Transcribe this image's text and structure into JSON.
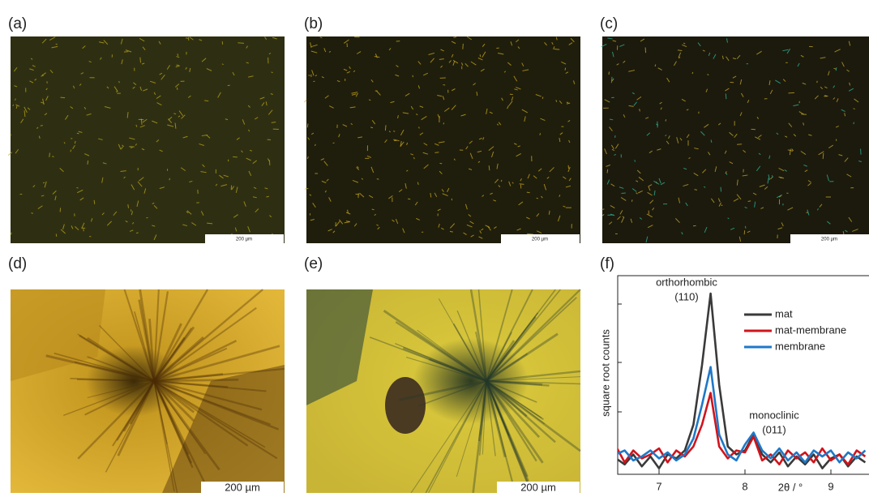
{
  "panels": [
    {
      "label": "(a)",
      "scale_bar": "200 µm"
    },
    {
      "label": "(b)",
      "scale_bar": "200 µm"
    },
    {
      "label": "(c)",
      "scale_bar": "200 µm"
    },
    {
      "label": "(d)",
      "scale_bar": "200 µm"
    },
    {
      "label": "(e)",
      "scale_bar": "200 µm"
    }
  ],
  "chart_data": {
    "type": "line",
    "panel_label": "(f)",
    "ylabel": "square root counts",
    "xlabel": "2θ / °",
    "annotations": [
      "orthorhombic",
      "(110)",
      "monoclinic",
      "(011)"
    ],
    "xlim": [
      6.5,
      9.4
    ],
    "xticks": [
      7,
      8,
      9
    ],
    "ylim": [
      0,
      100
    ],
    "x": [
      6.5,
      6.6,
      6.7,
      6.8,
      6.9,
      7.0,
      7.1,
      7.2,
      7.3,
      7.4,
      7.5,
      7.6,
      7.7,
      7.8,
      7.9,
      8.0,
      8.1,
      8.2,
      8.3,
      8.4,
      8.5,
      8.6,
      8.7,
      8.8,
      8.9,
      9.0,
      9.1,
      9.2,
      9.3,
      9.4
    ],
    "series": [
      {
        "name": "mat",
        "color": "#3a3a3a",
        "values": [
          8,
          5,
          10,
          4,
          9,
          3,
          10,
          8,
          12,
          25,
          55,
          91,
          45,
          14,
          10,
          12,
          20,
          10,
          6,
          11,
          4,
          9,
          5,
          10,
          3,
          8,
          10,
          4,
          9,
          6
        ]
      },
      {
        "name": "mat-membrane",
        "color": "#d0141c",
        "values": [
          14,
          6,
          12,
          8,
          10,
          13,
          6,
          12,
          9,
          14,
          25,
          41,
          14,
          8,
          12,
          11,
          19,
          7,
          10,
          5,
          12,
          8,
          11,
          6,
          13,
          7,
          10,
          5,
          12,
          9
        ]
      },
      {
        "name": "membrane",
        "color": "#1f78c8",
        "values": [
          10,
          12,
          7,
          9,
          12,
          8,
          11,
          7,
          10,
          18,
          35,
          54,
          20,
          10,
          7,
          15,
          21,
          12,
          8,
          13,
          7,
          11,
          6,
          12,
          9,
          12,
          6,
          11,
          8,
          12
        ]
      }
    ]
  }
}
